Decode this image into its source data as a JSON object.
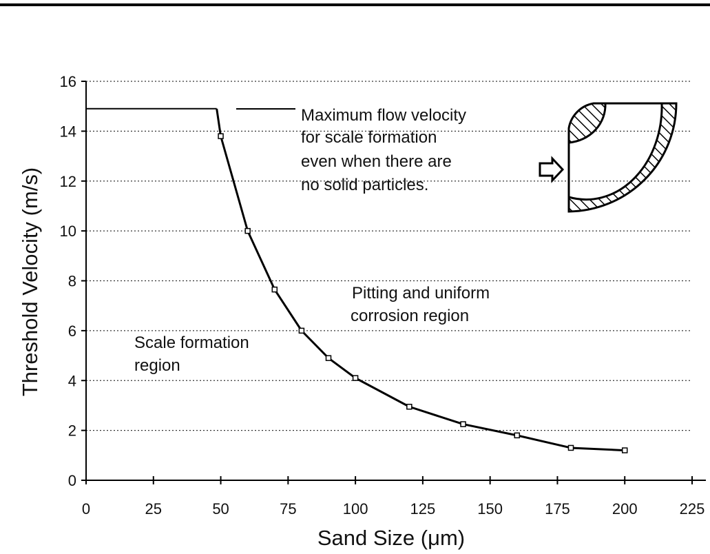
{
  "chart_data": {
    "type": "line",
    "xlabel": "Sand Size (μm)",
    "ylabel": "Threshold Velocity (m/s)",
    "xlim": [
      0,
      225
    ],
    "ylim": [
      0,
      16
    ],
    "xticks": [
      0,
      25,
      50,
      75,
      100,
      125,
      150,
      175,
      200,
      225
    ],
    "yticks": [
      0,
      2,
      4,
      6,
      8,
      10,
      12,
      14,
      16
    ],
    "grid": "horizontal-dotted",
    "plateau": {
      "x": [
        0,
        48.5
      ],
      "y": 14.9
    },
    "series": [
      {
        "x": [
          50,
          60,
          70,
          80,
          90,
          100,
          120,
          140,
          160,
          180,
          200
        ],
        "y": [
          13.8,
          10.0,
          7.65,
          6.0,
          4.9,
          4.1,
          2.95,
          2.25,
          1.8,
          1.3,
          1.2
        ]
      }
    ],
    "annotations": {
      "max_flow": [
        "Maximum flow velocity",
        "for scale formation",
        "even when there are",
        "no solid particles."
      ],
      "pitting": [
        "Pitting and uniform",
        "corrosion region"
      ],
      "scale": [
        "Scale formation",
        "region"
      ]
    },
    "inset": "pipe-elbow-diagram"
  }
}
